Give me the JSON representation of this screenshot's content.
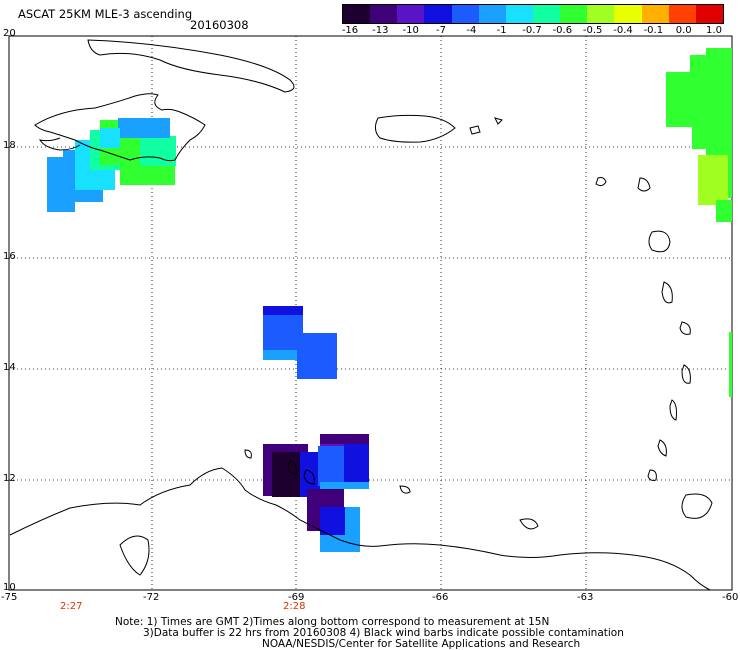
{
  "title": "ASCAT 25KM MLE-3 ascending",
  "date": "20160308",
  "colorbar": {
    "labels": [
      "-16",
      "-13",
      "-10",
      "-7",
      "-4",
      "-1",
      "-0.7",
      "-0.6",
      "-0.5",
      "-0.4",
      "-0.1",
      "0.0",
      "1.0"
    ],
    "colors": [
      "#1e0030",
      "#40007a",
      "#5a14c8",
      "#1010e0",
      "#1c5cff",
      "#1aa0ff",
      "#18e0ff",
      "#10ffa0",
      "#30ff30",
      "#a0ff20",
      "#e8ff00",
      "#ffb000",
      "#ff4000",
      "#e00000"
    ]
  },
  "axes": {
    "x_ticks": [
      "-75",
      "-72",
      "-69",
      "-66",
      "-63",
      "-60"
    ],
    "y_ticks": [
      "20",
      "18",
      "16",
      "14",
      "12",
      "10"
    ]
  },
  "time_labels": [
    "2:27",
    "2:28"
  ],
  "notes": [
    "Note: 1) Times are GMT 2)Times along bottom correspond to measurement at 15N",
    "3)Data buffer is 22 hrs from 20160308 4) Black wind barbs indicate possible contamination",
    "NOAA/NESDIS/Center for Satellite Applications and Research"
  ],
  "colors": {
    "grid": "#000000",
    "coast": "#000000",
    "time_label": "#e03000"
  }
}
